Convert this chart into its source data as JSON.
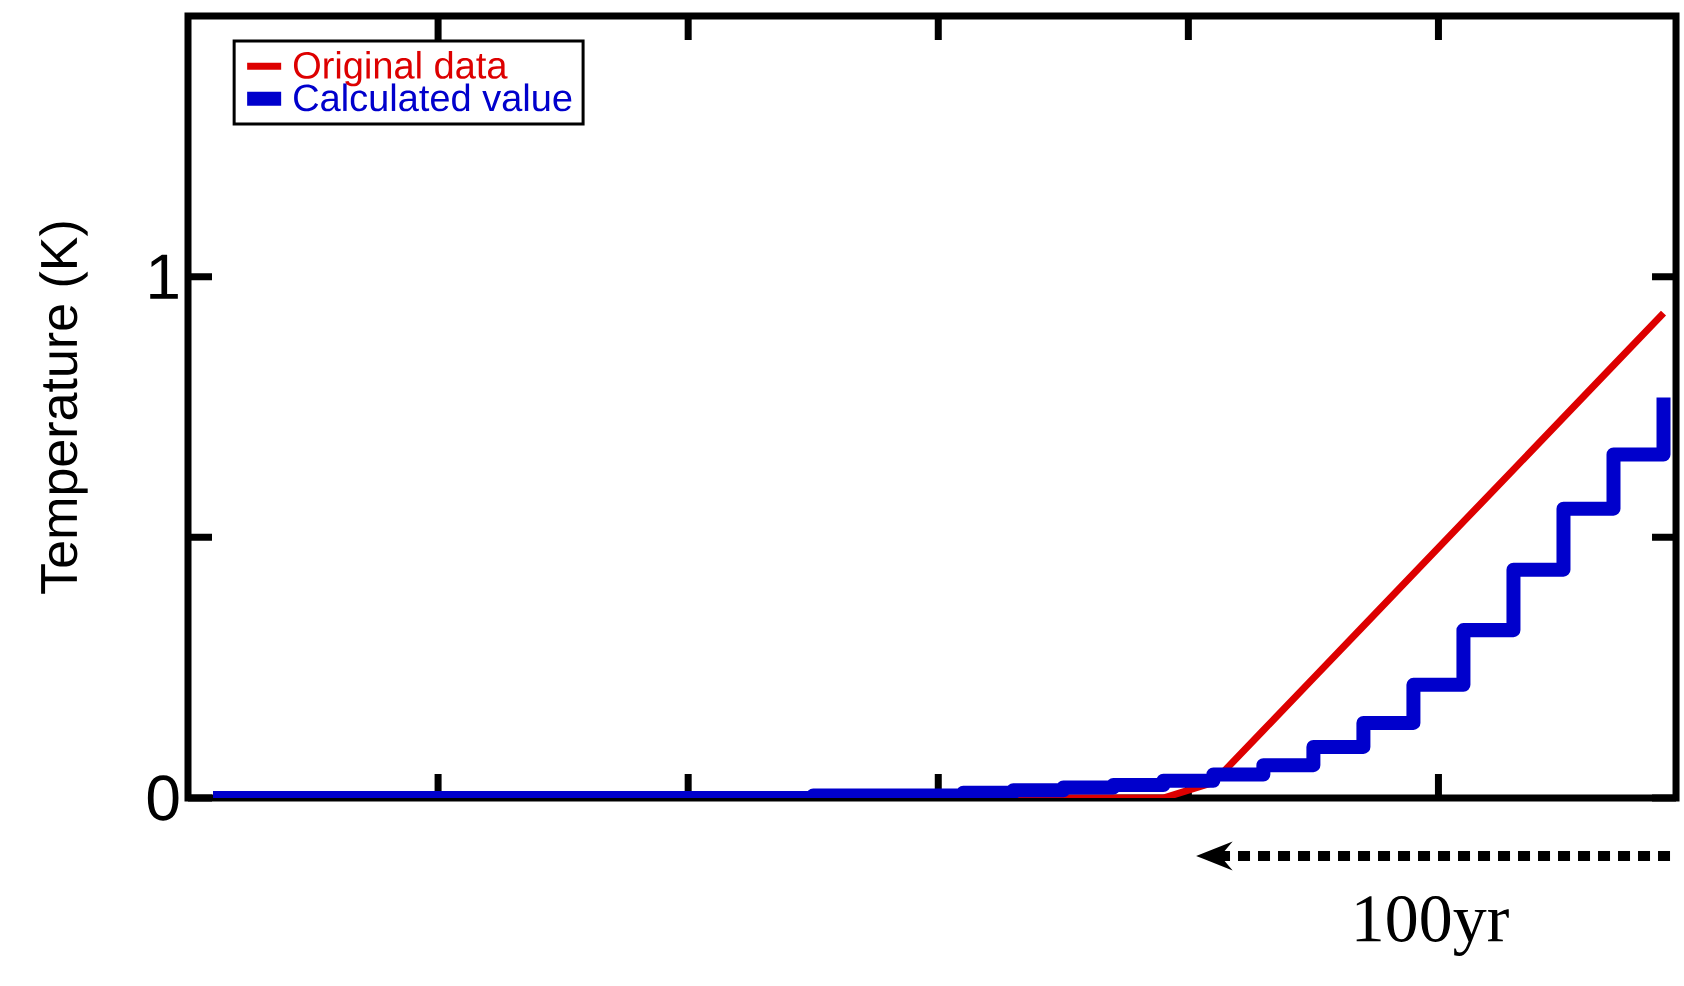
{
  "chart_data": {
    "type": "line",
    "ylabel": "Temperature (K)",
    "categories": [
      null,
      null,
      null,
      null,
      null,
      null,
      null,
      null,
      null,
      null,
      null,
      null,
      null,
      null,
      null,
      null,
      null,
      null,
      null,
      null,
      null,
      null,
      null,
      null,
      null,
      null,
      null,
      null,
      null,
      null
    ],
    "ylim": [
      0,
      1.5
    ],
    "yticks": [
      0,
      {
        "value": 0.5,
        "label": null
      },
      1
    ],
    "tick_labels": "y",
    "legend": "top left",
    "marker": "none",
    "series": [
      {
        "name": "Original data",
        "color": "#dd0000",
        "values": [
          null,
          null,
          null,
          null,
          null,
          null,
          null,
          null,
          null,
          null,
          null,
          null,
          null,
          null,
          null,
          null,
          0,
          0,
          0,
          0,
          0.03,
          0.13,
          0.23,
          0.33,
          0.43,
          0.53,
          0.63,
          0.73,
          0.83,
          0.93
        ]
      },
      {
        "name": "Calculated value",
        "type": "step",
        "color": "#0000cc",
        "values": [
          0,
          0,
          0,
          0,
          0,
          0,
          0,
          0,
          0,
          0,
          0,
          0,
          0.005,
          0.005,
          0.005,
          0.01,
          0.015,
          0.02,
          0.025,
          0.033,
          0.045,
          0.063,
          0.098,
          0.144,
          0.217,
          0.322,
          0.438,
          0.555,
          0.659,
          0.768
        ]
      }
    ],
    "annotations": [
      "100yr"
    ]
  }
}
